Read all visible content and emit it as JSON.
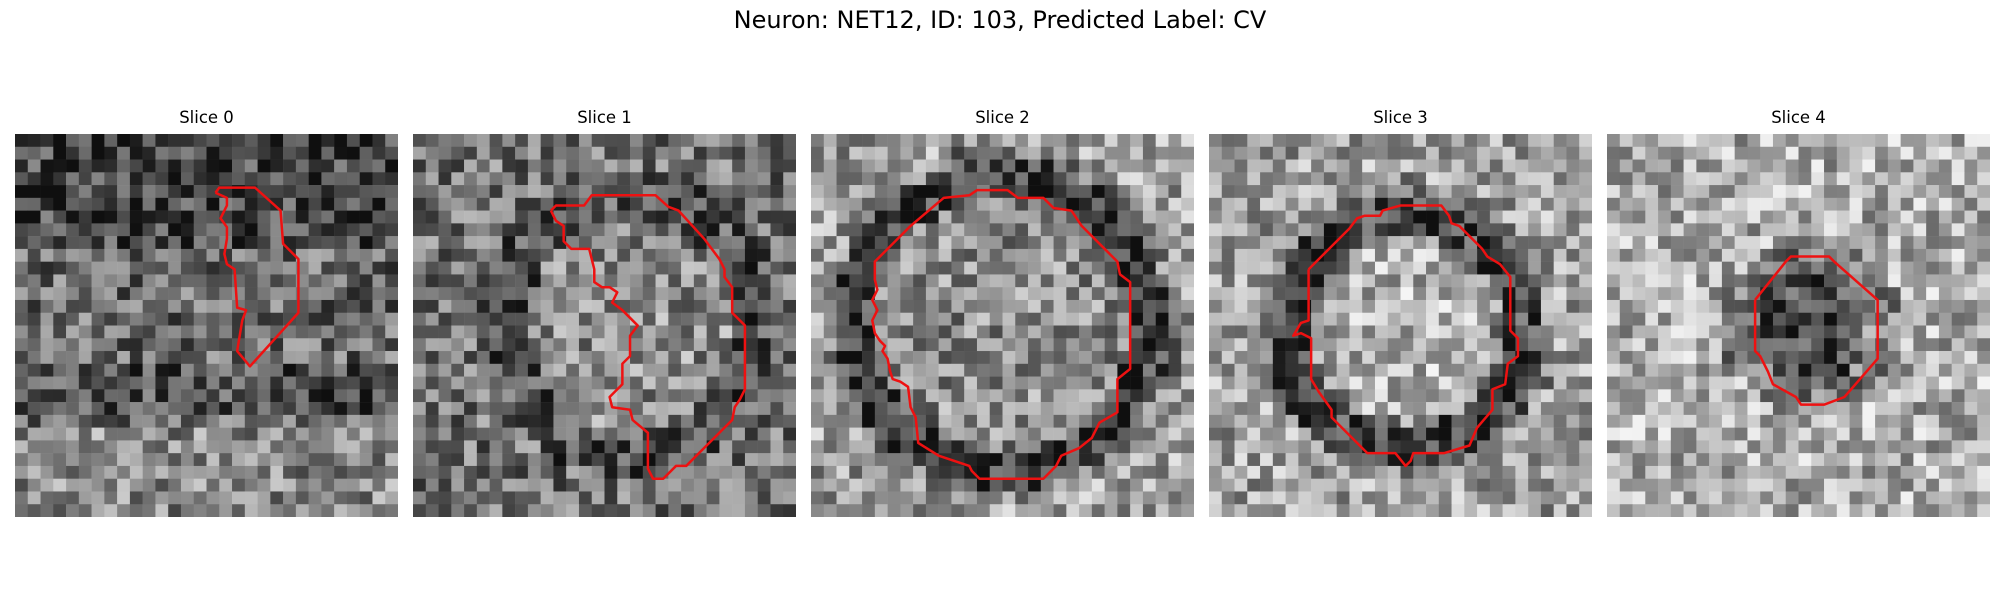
{
  "figure": {
    "title": "Neuron: NET12, ID: 103, Predicted Label: CV"
  },
  "slices": [
    {
      "title": "Slice 0",
      "seed": 11,
      "base": 0.42,
      "contour_color": "#ee1111",
      "stroke_width_px": 2.5
    },
    {
      "title": "Slice 1",
      "seed": 23,
      "base": 0.45,
      "contour_color": "#ee1111",
      "stroke_width_px": 2.5
    },
    {
      "title": "Slice 2",
      "seed": 37,
      "base": 0.5,
      "contour_color": "#ee1111",
      "stroke_width_px": 2.5
    },
    {
      "title": "Slice 3",
      "seed": 53,
      "base": 0.55,
      "contour_color": "#ee1111",
      "stroke_width_px": 2.5
    },
    {
      "title": "Slice 4",
      "seed": 71,
      "base": 0.58,
      "contour_color": "#ee1111",
      "stroke_width_px": 2.5
    }
  ],
  "colormap": "gray",
  "colors": {
    "contour": "#ee1111",
    "background": "#ffffff"
  }
}
